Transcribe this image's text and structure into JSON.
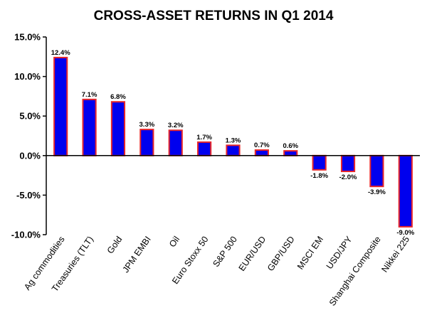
{
  "chart_data": {
    "type": "bar",
    "title": "CROSS-ASSET RETURNS IN Q1 2014",
    "xlabel": "",
    "ylabel": "",
    "categories": [
      "Ag commodities",
      "Treasuries (TLT)",
      "Gold",
      "JPM EMBI",
      "Oil",
      "Euro Stoxx 50",
      "S&P 500",
      "EUR/USD",
      "GBP/USD",
      "MSCI EM",
      "USD/JPY",
      "Shanghai Composite",
      "Nikkei 225"
    ],
    "values": [
      12.4,
      7.1,
      6.8,
      3.3,
      3.2,
      1.7,
      1.3,
      0.7,
      0.6,
      -1.8,
      -2.0,
      -3.9,
      -9.0
    ],
    "data_labels": [
      "12.4%",
      "7.1%",
      "6.8%",
      "3.3%",
      "3.2%",
      "1.7%",
      "1.3%",
      "0.7%",
      "0.6%",
      "-1.8%",
      "-2.0%",
      "-3.9%",
      "-9.0%"
    ],
    "ylim": [
      -10,
      15
    ],
    "yticks": [
      15,
      10,
      5,
      0,
      -5,
      -10
    ],
    "ytick_labels": [
      "15.0%",
      "10.0%",
      "5.0%",
      "0.0%",
      "-5.0%",
      "-10.0%"
    ],
    "grid": false,
    "legend": "none",
    "colors": {
      "bar_fill": "#0000ee",
      "bar_edge": "#e8262a"
    }
  }
}
